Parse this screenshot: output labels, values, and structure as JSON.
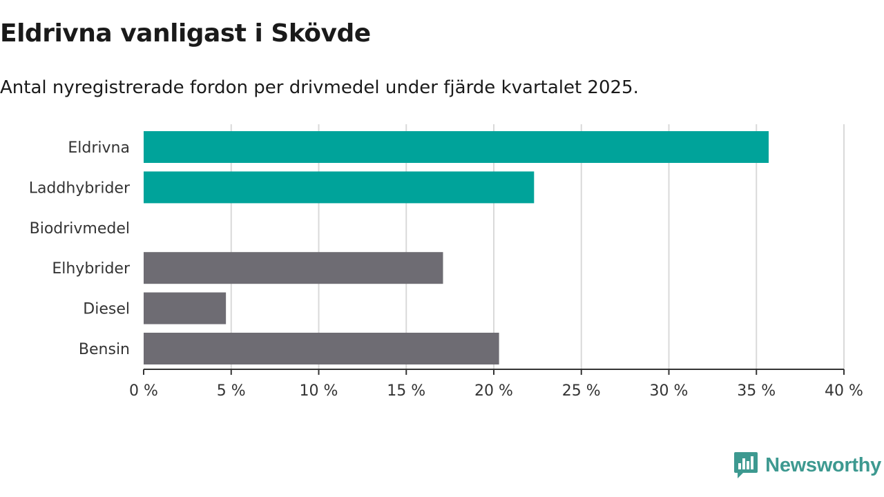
{
  "title": "Eldrivna vanligast i Skövde",
  "subtitle": "Antal nyregistrerade fordon per drivmedel under fjärde kvartalet 2025.",
  "colors": {
    "highlight": "#00a39a",
    "default": "#6e6c73",
    "grid": "#d9d9d9",
    "axis": "#333333",
    "logo": "#3d9990"
  },
  "chart_data": {
    "type": "bar",
    "orientation": "horizontal",
    "title": "Eldrivna vanligast i Skövde",
    "subtitle": "Antal nyregistrerade fordon per drivmedel under fjärde kvartalet 2025.",
    "categories": [
      "Eldrivna",
      "Laddhybrider",
      "Biodrivmedel",
      "Elhybrider",
      "Diesel",
      "Bensin"
    ],
    "values": [
      35.7,
      22.3,
      0,
      17.1,
      4.7,
      20.3
    ],
    "highlighted": [
      true,
      true,
      false,
      false,
      false,
      false
    ],
    "xlim": [
      0,
      40
    ],
    "xticks": [
      0,
      5,
      10,
      15,
      20,
      25,
      30,
      35,
      40
    ],
    "tick_labels": [
      "0 %",
      "5 %",
      "10 %",
      "15 %",
      "20 %",
      "25 %",
      "30 %",
      "35 %",
      "40 %"
    ],
    "xlabel": "",
    "ylabel": "",
    "grid": true
  },
  "logo": {
    "text": "Newsworthy",
    "icon": "newsworthy-logo-icon"
  }
}
